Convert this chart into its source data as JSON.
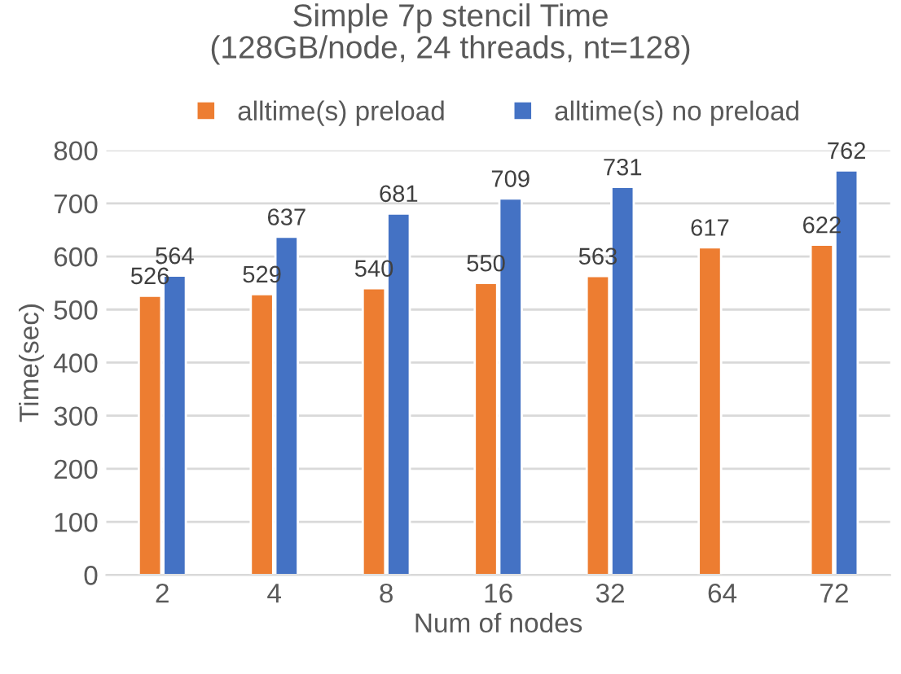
{
  "chart_data": {
    "type": "bar",
    "title": "Simple 7p stencil Time\n(128GB/node, 24 threads, nt=128)",
    "xlabel": "Num of nodes",
    "ylabel": "Time(sec)",
    "categories": [
      "2",
      "4",
      "8",
      "16",
      "32",
      "64",
      "72"
    ],
    "series": [
      {
        "name": "alltime(s) preload",
        "color": "#ed7d31",
        "values": [
          526,
          529,
          540,
          550,
          563,
          617,
          622
        ]
      },
      {
        "name": "alltime(s) no preload",
        "color": "#4472c4",
        "values": [
          564,
          637,
          681,
          709,
          731,
          null,
          762
        ]
      }
    ],
    "ylim": [
      0,
      800
    ],
    "yticks": [
      0,
      100,
      200,
      300,
      400,
      500,
      600,
      700,
      800
    ],
    "grid": "y",
    "legend": "top",
    "data_labels": true
  }
}
